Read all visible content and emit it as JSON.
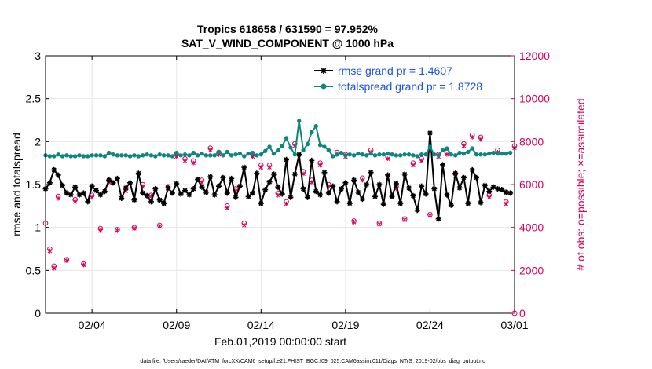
{
  "chart_data": {
    "type": "line",
    "title": "Tropics 618658 / 631590 = 97.952%",
    "subtitle": "SAT_V_WIND_COMPONENT @ 1000 hPa",
    "xlabel": "Feb.01,2019 00:00:00 start",
    "ylabel": "rmse and totalspread",
    "ylabel_right": "# of obs: o=possible; ×=assimilated",
    "footnote": "data file: /Users/raeder/DAI/ATM_forcXX/CAM6_setup/f.e21.FHIST_BGC.f09_025.CAM6assim.011/Diags_NTrS_2019-02/obs_diag_output.nc",
    "xlim": [
      1.25,
      29.0
    ],
    "ylim": [
      0,
      3
    ],
    "ylim_right": [
      0,
      12000
    ],
    "x_ticks": [
      4,
      9,
      14,
      19,
      24,
      29
    ],
    "x_tick_labels": [
      "02/04",
      "02/09",
      "02/14",
      "02/19",
      "02/24",
      "03/01"
    ],
    "y_ticks": [
      0,
      0.5,
      1,
      1.5,
      2,
      2.5,
      3
    ],
    "y_tick_labels": [
      "0",
      "0.5",
      "1",
      "1.5",
      "2",
      "2.5",
      "3"
    ],
    "y_right_ticks": [
      0,
      2000,
      4000,
      6000,
      8000,
      10000,
      12000
    ],
    "y_right_tick_labels": [
      "0",
      "2000",
      "4000",
      "6000",
      "8000",
      "10000",
      "12000"
    ],
    "x_start": 1.25,
    "x_step": 0.25,
    "grid": true,
    "legend_position": "top-right",
    "series": [
      {
        "name": "rmse grand pr = 1.4607",
        "color": "#000000",
        "marker": "asterisk",
        "axis": "left",
        "values": [
          1.45,
          1.52,
          1.67,
          1.61,
          1.49,
          1.4,
          1.38,
          1.47,
          1.38,
          1.4,
          1.3,
          1.48,
          1.43,
          1.38,
          1.42,
          1.55,
          1.52,
          1.57,
          1.34,
          1.46,
          1.52,
          1.32,
          1.63,
          1.4,
          1.37,
          1.3,
          1.45,
          1.32,
          1.28,
          1.46,
          1.4,
          1.51,
          1.39,
          1.43,
          1.38,
          1.45,
          1.56,
          1.47,
          1.41,
          1.59,
          1.38,
          1.48,
          1.58,
          1.4,
          1.57,
          1.35,
          1.48,
          1.7,
          1.36,
          1.4,
          1.63,
          1.28,
          1.44,
          1.53,
          1.62,
          1.47,
          1.39,
          1.79,
          1.35,
          1.62,
          1.85,
          1.45,
          1.35,
          1.78,
          1.42,
          1.38,
          1.64,
          1.4,
          1.48,
          1.3,
          1.45,
          1.52,
          1.28,
          1.55,
          1.41,
          1.33,
          1.5,
          1.64,
          1.36,
          1.5,
          1.27,
          1.61,
          1.36,
          1.51,
          1.28,
          1.62,
          1.46,
          1.37,
          1.2,
          1.48,
          1.39,
          2.1,
          1.45,
          1.1,
          1.73,
          1.38,
          1.26,
          1.63,
          1.46,
          1.58,
          1.28,
          1.67,
          1.58,
          1.29,
          1.49,
          1.42,
          1.47,
          1.45,
          1.44,
          1.41,
          1.4
        ]
      },
      {
        "name": "totalspread grand pr = 1.8728",
        "color": "#0e857e",
        "marker": "dot",
        "axis": "left",
        "values": [
          1.84,
          1.83,
          1.83,
          1.85,
          1.83,
          1.84,
          1.83,
          1.83,
          1.84,
          1.83,
          1.83,
          1.84,
          1.84,
          1.84,
          1.83,
          1.87,
          1.85,
          1.84,
          1.84,
          1.84,
          1.83,
          1.84,
          1.83,
          1.84,
          1.85,
          1.84,
          1.83,
          1.85,
          1.84,
          1.84,
          1.83,
          1.87,
          1.84,
          1.85,
          1.84,
          1.87,
          1.84,
          1.86,
          1.84,
          1.84,
          1.84,
          1.88,
          1.84,
          1.88,
          1.84,
          1.85,
          1.86,
          1.83,
          1.86,
          1.87,
          1.84,
          1.85,
          1.89,
          1.94,
          1.86,
          1.9,
          1.95,
          2.04,
          1.93,
          1.85,
          2.24,
          1.9,
          1.97,
          2.11,
          2.18,
          1.96,
          1.94,
          1.9,
          1.83,
          1.85,
          1.87,
          1.84,
          1.85,
          1.84,
          1.86,
          1.85,
          1.84,
          1.86,
          1.84,
          1.85,
          1.85,
          1.86,
          1.85,
          1.84,
          1.84,
          1.85,
          1.85,
          1.84,
          1.83,
          1.85,
          1.85,
          1.94,
          1.85,
          1.84,
          1.9,
          1.92,
          1.85,
          1.84,
          1.87,
          1.86,
          1.88,
          1.92,
          1.85,
          1.85,
          1.85,
          1.86,
          1.87,
          1.86,
          1.86,
          1.86,
          1.87
        ]
      }
    ],
    "obs_possible": {
      "name": "possible",
      "color": "#d6005d",
      "marker": "circle",
      "axis": "right",
      "x": [
        1.25,
        1.5,
        1.75,
        2.0,
        2.5,
        3.0,
        3.5,
        4.0,
        4.5,
        5.0,
        5.5,
        6.0,
        6.5,
        7.0,
        7.5,
        8.0,
        8.5,
        9.0,
        9.5,
        10.0,
        10.5,
        11.0,
        11.5,
        12.0,
        12.5,
        13.0,
        13.5,
        14.0,
        14.5,
        15.0,
        15.5,
        16.0,
        16.5,
        17.0,
        17.5,
        18.0,
        18.5,
        19.0,
        19.5,
        20.0,
        20.5,
        21.0,
        21.5,
        22.0,
        22.5,
        23.0,
        23.5,
        24.0,
        24.5,
        25.0,
        25.5,
        26.0,
        26.5,
        27.0,
        27.5,
        28.0,
        28.5,
        29.0
      ],
      "values": [
        4200,
        3000,
        2200,
        5450,
        2500,
        5300,
        2300,
        5500,
        3950,
        6200,
        3900,
        5800,
        4000,
        6000,
        5500,
        4100,
        5900,
        7400,
        7200,
        7100,
        6200,
        7700,
        7500,
        5000,
        5800,
        4200,
        7400,
        6900,
        6900,
        5600,
        5200,
        7900,
        6600,
        6200,
        7000,
        6000,
        7500,
        7400,
        4300,
        6300,
        7600,
        4200,
        7300,
        5900,
        4400,
        7000,
        7200,
        4600,
        7400,
        7500,
        6500,
        7900,
        8300,
        8200,
        5500,
        7600,
        5200,
        7800
      ]
    },
    "obs_assimilated": {
      "name": "assimilated",
      "color": "#d6005d",
      "marker": "cross",
      "axis": "right",
      "x": [
        1.5,
        1.75,
        2.0,
        2.5,
        3.0,
        3.5,
        4.0,
        4.5,
        5.0,
        5.5,
        6.0,
        6.5,
        7.0,
        7.5,
        8.0,
        8.5,
        9.0,
        9.5,
        10.0,
        10.5,
        11.0,
        11.5,
        12.0,
        12.5,
        13.0,
        13.5,
        14.0,
        14.5,
        15.0,
        15.5,
        16.0,
        16.5,
        17.0,
        17.5,
        18.0,
        18.5,
        19.0,
        19.5,
        20.0,
        20.5,
        21.0,
        21.5,
        22.0,
        22.5,
        23.0,
        23.5,
        24.0,
        24.5,
        25.0,
        25.5,
        26.0,
        26.5,
        27.0,
        27.5,
        28.0,
        28.5,
        29.0
      ],
      "values": [
        2900,
        2100,
        5350,
        2450,
        5200,
        2250,
        5400,
        3850,
        6100,
        3850,
        5700,
        3950,
        5900,
        5450,
        4050,
        5800,
        7300,
        7100,
        7000,
        6100,
        7600,
        7400,
        4900,
        5700,
        4100,
        7300,
        6800,
        6800,
        5500,
        5100,
        7800,
        6500,
        6100,
        6900,
        5900,
        7400,
        7300,
        4250,
        6200,
        7500,
        4150,
        7200,
        5800,
        4350,
        6900,
        7100,
        4550,
        7300,
        7400,
        6400,
        7800,
        8200,
        8100,
        5400,
        7500,
        5100,
        7700
      ]
    }
  }
}
